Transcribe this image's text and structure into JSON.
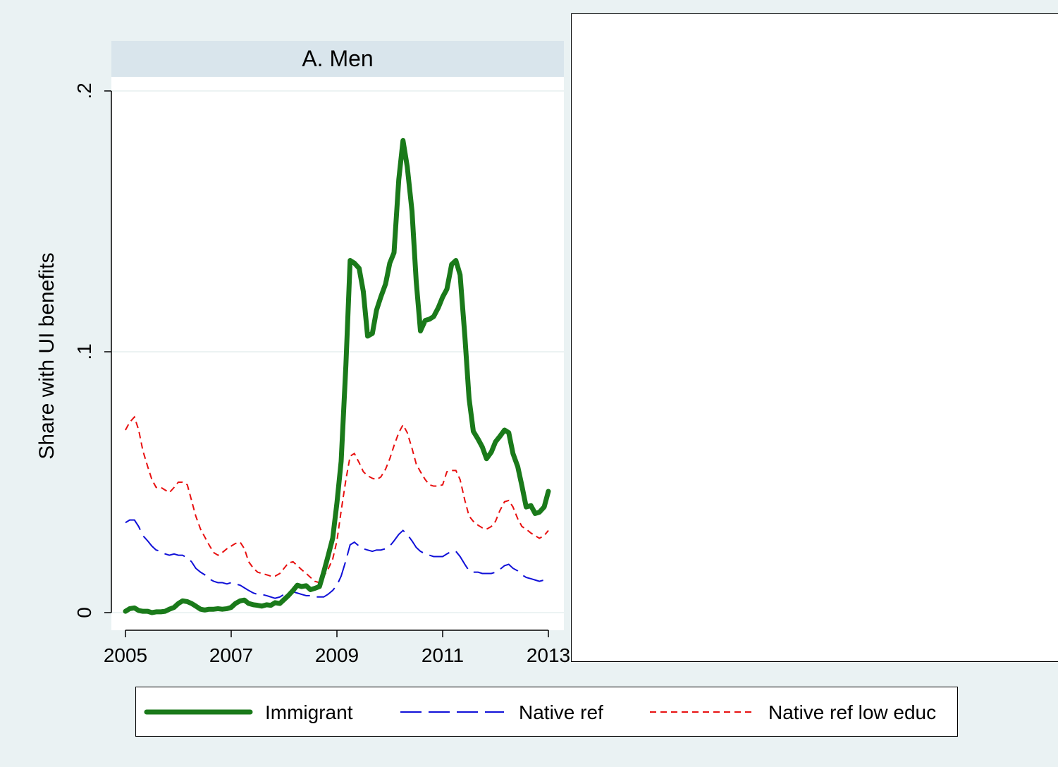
{
  "chart_data": {
    "type": "line",
    "title": "A. Men",
    "xlabel": "",
    "ylabel": "Share with UI benefits",
    "xlim": [
      2005,
      2013
    ],
    "ylim": [
      0,
      0.2
    ],
    "x_ticks": [
      {
        "value": 2005,
        "label": "2005"
      },
      {
        "value": 2007,
        "label": "2007"
      },
      {
        "value": 2009,
        "label": "2009"
      },
      {
        "value": 2011,
        "label": "2011"
      },
      {
        "value": 2013,
        "label": "2013"
      }
    ],
    "y_ticks": [
      {
        "value": 0,
        "label": "0"
      },
      {
        "value": 0.1,
        "label": ".1"
      },
      {
        "value": 0.2,
        "label": ".2"
      }
    ],
    "grid": true,
    "legend_position": "bottom",
    "series": [
      {
        "name": "Immigrant",
        "color": "#1a7a1a",
        "style": "solid-thick",
        "points": [
          [
            2005.0,
            0.0005
          ],
          [
            2005.08,
            0.0015
          ],
          [
            2005.17,
            0.0018
          ],
          [
            2005.25,
            0.0008
          ],
          [
            2005.33,
            0.0005
          ],
          [
            2005.42,
            0.0005
          ],
          [
            2005.5,
            0.0
          ],
          [
            2005.58,
            0.0003
          ],
          [
            2005.67,
            0.0003
          ],
          [
            2005.75,
            0.0005
          ],
          [
            2005.83,
            0.0013
          ],
          [
            2005.92,
            0.002
          ],
          [
            2006.0,
            0.0035
          ],
          [
            2006.08,
            0.0045
          ],
          [
            2006.17,
            0.0042
          ],
          [
            2006.25,
            0.0035
          ],
          [
            2006.33,
            0.0025
          ],
          [
            2006.42,
            0.0013
          ],
          [
            2006.5,
            0.001
          ],
          [
            2006.58,
            0.0013
          ],
          [
            2006.67,
            0.0013
          ],
          [
            2006.75,
            0.0015
          ],
          [
            2006.83,
            0.0013
          ],
          [
            2006.92,
            0.0015
          ],
          [
            2007.0,
            0.002
          ],
          [
            2007.08,
            0.0035
          ],
          [
            2007.17,
            0.0045
          ],
          [
            2007.25,
            0.0048
          ],
          [
            2007.33,
            0.0035
          ],
          [
            2007.42,
            0.003
          ],
          [
            2007.5,
            0.0028
          ],
          [
            2007.58,
            0.0025
          ],
          [
            2007.67,
            0.003
          ],
          [
            2007.75,
            0.0028
          ],
          [
            2007.83,
            0.0038
          ],
          [
            2007.92,
            0.0035
          ],
          [
            2008.0,
            0.005
          ],
          [
            2008.08,
            0.0065
          ],
          [
            2008.17,
            0.0085
          ],
          [
            2008.25,
            0.0105
          ],
          [
            2008.33,
            0.01
          ],
          [
            2008.42,
            0.0103
          ],
          [
            2008.5,
            0.0088
          ],
          [
            2008.58,
            0.0093
          ],
          [
            2008.67,
            0.01
          ],
          [
            2008.75,
            0.0155
          ],
          [
            2008.83,
            0.0215
          ],
          [
            2008.92,
            0.0285
          ],
          [
            2009.0,
            0.042
          ],
          [
            2009.08,
            0.058
          ],
          [
            2009.17,
            0.095
          ],
          [
            2009.25,
            0.135
          ],
          [
            2009.33,
            0.134
          ],
          [
            2009.42,
            0.132
          ],
          [
            2009.5,
            0.123
          ],
          [
            2009.58,
            0.106
          ],
          [
            2009.67,
            0.107
          ],
          [
            2009.75,
            0.116
          ],
          [
            2009.83,
            0.121
          ],
          [
            2009.92,
            0.126
          ],
          [
            2010.0,
            0.134
          ],
          [
            2010.08,
            0.138
          ],
          [
            2010.17,
            0.166
          ],
          [
            2010.25,
            0.181
          ],
          [
            2010.33,
            0.171
          ],
          [
            2010.42,
            0.154
          ],
          [
            2010.5,
            0.127
          ],
          [
            2010.58,
            0.108
          ],
          [
            2010.67,
            0.112
          ],
          [
            2010.75,
            0.1125
          ],
          [
            2010.83,
            0.1135
          ],
          [
            2010.92,
            0.117
          ],
          [
            2011.0,
            0.121
          ],
          [
            2011.08,
            0.124
          ],
          [
            2011.17,
            0.1335
          ],
          [
            2011.25,
            0.135
          ],
          [
            2011.33,
            0.1295
          ],
          [
            2011.42,
            0.106
          ],
          [
            2011.5,
            0.082
          ],
          [
            2011.58,
            0.0695
          ],
          [
            2011.67,
            0.0665
          ],
          [
            2011.75,
            0.0635
          ],
          [
            2011.83,
            0.059
          ],
          [
            2011.92,
            0.0615
          ],
          [
            2012.0,
            0.0655
          ],
          [
            2012.08,
            0.0675
          ],
          [
            2012.17,
            0.07
          ],
          [
            2012.25,
            0.069
          ],
          [
            2012.33,
            0.061
          ],
          [
            2012.42,
            0.056
          ],
          [
            2012.5,
            0.0485
          ],
          [
            2012.58,
            0.0405
          ],
          [
            2012.67,
            0.041
          ],
          [
            2012.75,
            0.038
          ],
          [
            2012.83,
            0.0385
          ],
          [
            2012.92,
            0.0405
          ],
          [
            2013.0,
            0.0465
          ]
        ]
      },
      {
        "name": "Native ref",
        "color": "#1010d8",
        "style": "long-dash",
        "points": [
          [
            2005.0,
            0.0345
          ],
          [
            2005.08,
            0.0355
          ],
          [
            2005.17,
            0.0355
          ],
          [
            2005.25,
            0.033
          ],
          [
            2005.33,
            0.0295
          ],
          [
            2005.42,
            0.0275
          ],
          [
            2005.5,
            0.0255
          ],
          [
            2005.58,
            0.024
          ],
          [
            2005.67,
            0.0235
          ],
          [
            2005.75,
            0.0225
          ],
          [
            2005.83,
            0.022
          ],
          [
            2005.92,
            0.0225
          ],
          [
            2006.0,
            0.022
          ],
          [
            2006.08,
            0.022
          ],
          [
            2006.17,
            0.021
          ],
          [
            2006.25,
            0.0195
          ],
          [
            2006.33,
            0.017
          ],
          [
            2006.42,
            0.0155
          ],
          [
            2006.5,
            0.0145
          ],
          [
            2006.58,
            0.013
          ],
          [
            2006.67,
            0.012
          ],
          [
            2006.75,
            0.0115
          ],
          [
            2006.83,
            0.0115
          ],
          [
            2006.92,
            0.011
          ],
          [
            2007.0,
            0.0115
          ],
          [
            2007.08,
            0.011
          ],
          [
            2007.17,
            0.0105
          ],
          [
            2007.25,
            0.0095
          ],
          [
            2007.33,
            0.0085
          ],
          [
            2007.42,
            0.0075
          ],
          [
            2007.5,
            0.007
          ],
          [
            2007.58,
            0.007
          ],
          [
            2007.67,
            0.0065
          ],
          [
            2007.75,
            0.006
          ],
          [
            2007.83,
            0.0055
          ],
          [
            2007.92,
            0.006
          ],
          [
            2008.0,
            0.007
          ],
          [
            2008.08,
            0.008
          ],
          [
            2008.17,
            0.008
          ],
          [
            2008.25,
            0.0075
          ],
          [
            2008.33,
            0.007
          ],
          [
            2008.42,
            0.0065
          ],
          [
            2008.5,
            0.0065
          ],
          [
            2008.58,
            0.006
          ],
          [
            2008.67,
            0.006
          ],
          [
            2008.75,
            0.006
          ],
          [
            2008.83,
            0.007
          ],
          [
            2008.92,
            0.0085
          ],
          [
            2009.0,
            0.0105
          ],
          [
            2009.08,
            0.014
          ],
          [
            2009.17,
            0.02
          ],
          [
            2009.25,
            0.026
          ],
          [
            2009.33,
            0.027
          ],
          [
            2009.42,
            0.0255
          ],
          [
            2009.5,
            0.0245
          ],
          [
            2009.58,
            0.024
          ],
          [
            2009.67,
            0.0235
          ],
          [
            2009.75,
            0.024
          ],
          [
            2009.83,
            0.024
          ],
          [
            2009.92,
            0.0245
          ],
          [
            2010.0,
            0.0255
          ],
          [
            2010.08,
            0.0275
          ],
          [
            2010.17,
            0.03
          ],
          [
            2010.25,
            0.0315
          ],
          [
            2010.33,
            0.03
          ],
          [
            2010.42,
            0.0275
          ],
          [
            2010.5,
            0.025
          ],
          [
            2010.58,
            0.0235
          ],
          [
            2010.67,
            0.0225
          ],
          [
            2010.75,
            0.022
          ],
          [
            2010.83,
            0.0215
          ],
          [
            2010.92,
            0.0215
          ],
          [
            2011.0,
            0.0215
          ],
          [
            2011.08,
            0.0225
          ],
          [
            2011.17,
            0.0235
          ],
          [
            2011.25,
            0.0235
          ],
          [
            2011.33,
            0.0215
          ],
          [
            2011.42,
            0.0185
          ],
          [
            2011.5,
            0.016
          ],
          [
            2011.58,
            0.0155
          ],
          [
            2011.67,
            0.0155
          ],
          [
            2011.75,
            0.015
          ],
          [
            2011.83,
            0.015
          ],
          [
            2011.92,
            0.015
          ],
          [
            2012.0,
            0.0155
          ],
          [
            2012.08,
            0.0165
          ],
          [
            2012.17,
            0.018
          ],
          [
            2012.25,
            0.0185
          ],
          [
            2012.33,
            0.017
          ],
          [
            2012.42,
            0.016
          ],
          [
            2012.5,
            0.0145
          ],
          [
            2012.58,
            0.0135
          ],
          [
            2012.67,
            0.013
          ],
          [
            2012.75,
            0.0125
          ],
          [
            2012.83,
            0.012
          ],
          [
            2012.92,
            0.0125
          ],
          [
            2013.0,
            0.0135
          ]
        ]
      },
      {
        "name": "Native ref low educ",
        "color": "#e81010",
        "style": "short-dash",
        "points": [
          [
            2005.0,
            0.07
          ],
          [
            2005.08,
            0.073
          ],
          [
            2005.17,
            0.075
          ],
          [
            2005.25,
            0.07
          ],
          [
            2005.33,
            0.062
          ],
          [
            2005.42,
            0.056
          ],
          [
            2005.5,
            0.051
          ],
          [
            2005.58,
            0.048
          ],
          [
            2005.67,
            0.048
          ],
          [
            2005.75,
            0.047
          ],
          [
            2005.83,
            0.046
          ],
          [
            2005.92,
            0.048
          ],
          [
            2006.0,
            0.05
          ],
          [
            2006.08,
            0.05
          ],
          [
            2006.17,
            0.049
          ],
          [
            2006.25,
            0.043
          ],
          [
            2006.33,
            0.037
          ],
          [
            2006.42,
            0.032
          ],
          [
            2006.5,
            0.029
          ],
          [
            2006.58,
            0.026
          ],
          [
            2006.67,
            0.023
          ],
          [
            2006.75,
            0.022
          ],
          [
            2006.83,
            0.023
          ],
          [
            2006.92,
            0.0245
          ],
          [
            2007.0,
            0.0255
          ],
          [
            2007.08,
            0.0265
          ],
          [
            2007.17,
            0.027
          ],
          [
            2007.25,
            0.0245
          ],
          [
            2007.33,
            0.0195
          ],
          [
            2007.42,
            0.017
          ],
          [
            2007.5,
            0.0155
          ],
          [
            2007.58,
            0.015
          ],
          [
            2007.67,
            0.0145
          ],
          [
            2007.75,
            0.014
          ],
          [
            2007.83,
            0.014
          ],
          [
            2007.92,
            0.015
          ],
          [
            2008.0,
            0.017
          ],
          [
            2008.08,
            0.019
          ],
          [
            2008.17,
            0.0195
          ],
          [
            2008.25,
            0.018
          ],
          [
            2008.33,
            0.0165
          ],
          [
            2008.42,
            0.015
          ],
          [
            2008.5,
            0.0135
          ],
          [
            2008.58,
            0.012
          ],
          [
            2008.67,
            0.0115
          ],
          [
            2008.75,
            0.014
          ],
          [
            2008.83,
            0.0165
          ],
          [
            2008.92,
            0.0205
          ],
          [
            2009.0,
            0.0275
          ],
          [
            2009.08,
            0.039
          ],
          [
            2009.17,
            0.051
          ],
          [
            2009.25,
            0.06
          ],
          [
            2009.33,
            0.061
          ],
          [
            2009.42,
            0.0575
          ],
          [
            2009.5,
            0.054
          ],
          [
            2009.58,
            0.0525
          ],
          [
            2009.67,
            0.0515
          ],
          [
            2009.75,
            0.051
          ],
          [
            2009.83,
            0.052
          ],
          [
            2009.92,
            0.055
          ],
          [
            2010.0,
            0.059
          ],
          [
            2010.08,
            0.064
          ],
          [
            2010.17,
            0.069
          ],
          [
            2010.25,
            0.072
          ],
          [
            2010.33,
            0.069
          ],
          [
            2010.42,
            0.063
          ],
          [
            2010.5,
            0.057
          ],
          [
            2010.58,
            0.054
          ],
          [
            2010.67,
            0.051
          ],
          [
            2010.75,
            0.049
          ],
          [
            2010.83,
            0.0485
          ],
          [
            2010.92,
            0.0485
          ],
          [
            2011.0,
            0.049
          ],
          [
            2011.08,
            0.054
          ],
          [
            2011.17,
            0.0545
          ],
          [
            2011.25,
            0.0545
          ],
          [
            2011.33,
            0.051
          ],
          [
            2011.42,
            0.043
          ],
          [
            2011.5,
            0.037
          ],
          [
            2011.58,
            0.035
          ],
          [
            2011.67,
            0.0335
          ],
          [
            2011.75,
            0.0325
          ],
          [
            2011.83,
            0.032
          ],
          [
            2011.92,
            0.033
          ],
          [
            2012.0,
            0.035
          ],
          [
            2012.08,
            0.039
          ],
          [
            2012.17,
            0.0425
          ],
          [
            2012.25,
            0.043
          ],
          [
            2012.33,
            0.0405
          ],
          [
            2012.42,
            0.036
          ],
          [
            2012.5,
            0.033
          ],
          [
            2012.58,
            0.032
          ],
          [
            2012.67,
            0.0305
          ],
          [
            2012.75,
            0.0295
          ],
          [
            2012.83,
            0.0285
          ],
          [
            2012.92,
            0.0295
          ],
          [
            2013.0,
            0.0315
          ]
        ]
      }
    ]
  }
}
